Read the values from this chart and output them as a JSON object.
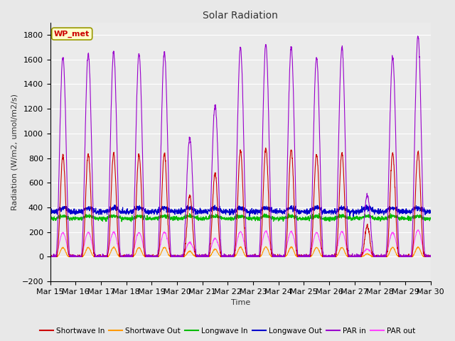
{
  "title": "Solar Radiation",
  "ylabel": "Radiation (W/m2, umol/m2/s)",
  "xlabel": "Time",
  "ylim": [
    -200,
    1900
  ],
  "yticks": [
    -200,
    0,
    200,
    400,
    600,
    800,
    1000,
    1200,
    1400,
    1600,
    1800
  ],
  "num_days": 15,
  "start_day": 15,
  "legend_label": "WP_met",
  "series": {
    "shortwave_in": {
      "color": "#cc0000",
      "label": "Shortwave In",
      "lw": 0.8
    },
    "shortwave_out": {
      "color": "#ff9900",
      "label": "Shortwave Out",
      "lw": 0.8
    },
    "longwave_in": {
      "color": "#00bb00",
      "label": "Longwave In",
      "lw": 0.8
    },
    "longwave_out": {
      "color": "#0000cc",
      "label": "Longwave Out",
      "lw": 0.8
    },
    "par_in": {
      "color": "#9900cc",
      "label": "PAR in",
      "lw": 0.8
    },
    "par_out": {
      "color": "#ff44ff",
      "label": "PAR out",
      "lw": 0.8
    }
  },
  "sw_in_peaks": [
    820,
    830,
    840,
    830,
    840,
    500,
    680,
    860,
    880,
    870,
    830,
    840,
    250,
    840,
    850
  ],
  "par_in_peaks": [
    1620,
    1650,
    1660,
    1650,
    1660,
    960,
    1230,
    1700,
    1720,
    1700,
    1620,
    1700,
    500,
    1620,
    1800
  ],
  "lw_in_base": 310,
  "lw_out_base": 365,
  "bg_color": "#e8e8e8",
  "plot_bg": "#ebebeb"
}
